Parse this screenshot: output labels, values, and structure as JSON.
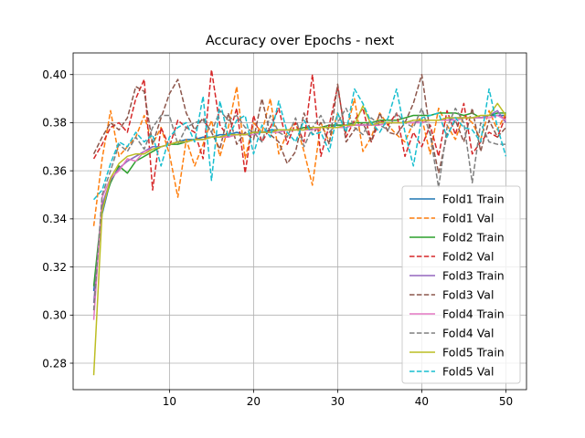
{
  "chart_data": {
    "type": "line",
    "title": "Accuracy over Epochs - next",
    "xlabel": "",
    "ylabel": "",
    "xlim": [
      -1.45,
      52.45
    ],
    "ylim": [
      0.269,
      0.409
    ],
    "x_ticks": [
      10,
      20,
      30,
      40,
      50
    ],
    "y_ticks": [
      0.28,
      0.3,
      0.32,
      0.34,
      0.36,
      0.38,
      0.4
    ],
    "y_tick_labels": [
      "0.28",
      "0.30",
      "0.32",
      "0.34",
      "0.36",
      "0.38",
      "0.40"
    ],
    "grid": true,
    "legend_position": "lower right",
    "x": [
      1,
      2,
      3,
      4,
      5,
      6,
      7,
      8,
      9,
      10,
      11,
      12,
      13,
      14,
      15,
      16,
      17,
      18,
      19,
      20,
      21,
      22,
      23,
      24,
      25,
      26,
      27,
      28,
      29,
      30,
      31,
      32,
      33,
      34,
      35,
      36,
      37,
      38,
      39,
      40,
      41,
      42,
      43,
      44,
      45,
      46,
      47,
      48,
      49,
      50
    ],
    "series": [
      {
        "name": "Fold1 Train",
        "color": "#1f77b4",
        "dash": "solid",
        "values": [
          0.31,
          0.342,
          0.356,
          0.361,
          0.364,
          0.366,
          0.368,
          0.37,
          0.37,
          0.371,
          0.372,
          0.373,
          0.373,
          0.374,
          0.374,
          0.375,
          0.375,
          0.376,
          0.375,
          0.376,
          0.376,
          0.377,
          0.377,
          0.377,
          0.377,
          0.378,
          0.378,
          0.378,
          0.378,
          0.379,
          0.379,
          0.379,
          0.379,
          0.379,
          0.38,
          0.38,
          0.38,
          0.38,
          0.381,
          0.381,
          0.381,
          0.381,
          0.382,
          0.382,
          0.382,
          0.382,
          0.382,
          0.383,
          0.383,
          0.383
        ]
      },
      {
        "name": "Fold1 Val",
        "color": "#ff7f0e",
        "dash": "dashed",
        "values": [
          0.337,
          0.365,
          0.385,
          0.366,
          0.37,
          0.374,
          0.383,
          0.371,
          0.378,
          0.367,
          0.349,
          0.373,
          0.362,
          0.371,
          0.381,
          0.366,
          0.378,
          0.395,
          0.365,
          0.38,
          0.376,
          0.39,
          0.367,
          0.376,
          0.38,
          0.368,
          0.354,
          0.38,
          0.372,
          0.384,
          0.376,
          0.39,
          0.368,
          0.374,
          0.384,
          0.379,
          0.375,
          0.372,
          0.38,
          0.382,
          0.367,
          0.386,
          0.379,
          0.373,
          0.383,
          0.38,
          0.373,
          0.385,
          0.377,
          0.384
        ]
      },
      {
        "name": "Fold2 Train",
        "color": "#2ca02c",
        "dash": "solid",
        "values": [
          0.312,
          0.345,
          0.355,
          0.362,
          0.359,
          0.364,
          0.366,
          0.368,
          0.37,
          0.371,
          0.371,
          0.372,
          0.373,
          0.373,
          0.374,
          0.374,
          0.375,
          0.375,
          0.375,
          0.376,
          0.376,
          0.376,
          0.377,
          0.377,
          0.377,
          0.378,
          0.378,
          0.378,
          0.379,
          0.379,
          0.379,
          0.38,
          0.38,
          0.38,
          0.381,
          0.381,
          0.381,
          0.382,
          0.383,
          0.383,
          0.383,
          0.384,
          0.384,
          0.384,
          0.383,
          0.384,
          0.382,
          0.383,
          0.384,
          0.384
        ]
      },
      {
        "name": "Fold2 Val",
        "color": "#d62728",
        "dash": "dashed",
        "values": [
          0.365,
          0.371,
          0.378,
          0.38,
          0.376,
          0.39,
          0.398,
          0.352,
          0.378,
          0.37,
          0.381,
          0.378,
          0.376,
          0.365,
          0.402,
          0.379,
          0.374,
          0.386,
          0.359,
          0.383,
          0.372,
          0.378,
          0.386,
          0.371,
          0.38,
          0.372,
          0.4,
          0.366,
          0.379,
          0.395,
          0.374,
          0.381,
          0.386,
          0.372,
          0.381,
          0.379,
          0.384,
          0.366,
          0.376,
          0.37,
          0.379,
          0.366,
          0.385,
          0.375,
          0.388,
          0.367,
          0.372,
          0.376,
          0.374,
          0.383
        ]
      },
      {
        "name": "Fold3 Train",
        "color": "#9467bd",
        "dash": "solid",
        "values": [
          0.305,
          0.346,
          0.356,
          0.361,
          0.364,
          0.366,
          0.368,
          0.37,
          0.37,
          0.371,
          0.372,
          0.372,
          0.373,
          0.373,
          0.374,
          0.374,
          0.375,
          0.375,
          0.375,
          0.376,
          0.376,
          0.376,
          0.377,
          0.377,
          0.377,
          0.377,
          0.378,
          0.378,
          0.378,
          0.378,
          0.379,
          0.379,
          0.379,
          0.379,
          0.38,
          0.38,
          0.38,
          0.38,
          0.38,
          0.381,
          0.381,
          0.381,
          0.381,
          0.382,
          0.382,
          0.382,
          0.382,
          0.383,
          0.385,
          0.38
        ]
      },
      {
        "name": "Fold3 Val",
        "color": "#8c564b",
        "dash": "dashed",
        "values": [
          0.367,
          0.374,
          0.38,
          0.377,
          0.382,
          0.395,
          0.393,
          0.371,
          0.382,
          0.392,
          0.398,
          0.384,
          0.377,
          0.382,
          0.376,
          0.369,
          0.384,
          0.371,
          0.376,
          0.373,
          0.39,
          0.375,
          0.372,
          0.363,
          0.368,
          0.384,
          0.375,
          0.38,
          0.371,
          0.396,
          0.372,
          0.377,
          0.38,
          0.372,
          0.384,
          0.376,
          0.375,
          0.38,
          0.388,
          0.4,
          0.376,
          0.359,
          0.375,
          0.381,
          0.372,
          0.386,
          0.368,
          0.381,
          0.374,
          0.378
        ]
      },
      {
        "name": "Fold4 Train",
        "color": "#e377c2",
        "dash": "solid",
        "values": [
          0.298,
          0.349,
          0.357,
          0.36,
          0.365,
          0.364,
          0.368,
          0.369,
          0.37,
          0.371,
          0.372,
          0.372,
          0.373,
          0.373,
          0.374,
          0.374,
          0.374,
          0.375,
          0.375,
          0.375,
          0.376,
          0.376,
          0.376,
          0.377,
          0.377,
          0.377,
          0.377,
          0.378,
          0.378,
          0.378,
          0.378,
          0.379,
          0.379,
          0.379,
          0.379,
          0.38,
          0.38,
          0.38,
          0.38,
          0.38,
          0.381,
          0.381,
          0.381,
          0.381,
          0.382,
          0.382,
          0.382,
          0.382,
          0.383,
          0.381
        ]
      },
      {
        "name": "Fold4 Val",
        "color": "#7f7f7f",
        "dash": "dashed",
        "values": [
          0.302,
          0.35,
          0.36,
          0.371,
          0.368,
          0.374,
          0.369,
          0.378,
          0.383,
          0.383,
          0.371,
          0.378,
          0.38,
          0.381,
          0.376,
          0.385,
          0.381,
          0.383,
          0.378,
          0.376,
          0.372,
          0.383,
          0.376,
          0.374,
          0.382,
          0.37,
          0.378,
          0.383,
          0.376,
          0.38,
          0.386,
          0.378,
          0.375,
          0.382,
          0.379,
          0.377,
          0.384,
          0.38,
          0.378,
          0.386,
          0.375,
          0.353,
          0.378,
          0.386,
          0.38,
          0.355,
          0.38,
          0.372,
          0.371,
          0.371
        ]
      },
      {
        "name": "Fold5 Train",
        "color": "#bcbd22",
        "dash": "solid",
        "values": [
          0.275,
          0.343,
          0.357,
          0.363,
          0.366,
          0.367,
          0.367,
          0.369,
          0.37,
          0.371,
          0.372,
          0.372,
          0.373,
          0.373,
          0.374,
          0.374,
          0.375,
          0.375,
          0.375,
          0.376,
          0.376,
          0.376,
          0.377,
          0.377,
          0.377,
          0.377,
          0.378,
          0.378,
          0.378,
          0.378,
          0.379,
          0.379,
          0.387,
          0.379,
          0.38,
          0.38,
          0.38,
          0.38,
          0.381,
          0.381,
          0.381,
          0.381,
          0.382,
          0.382,
          0.382,
          0.382,
          0.383,
          0.383,
          0.388,
          0.383
        ]
      },
      {
        "name": "Fold5 Val",
        "color": "#17becf",
        "dash": "dashed",
        "values": [
          0.348,
          0.352,
          0.363,
          0.372,
          0.37,
          0.376,
          0.372,
          0.375,
          0.362,
          0.374,
          0.378,
          0.38,
          0.372,
          0.391,
          0.356,
          0.389,
          0.374,
          0.381,
          0.383,
          0.367,
          0.379,
          0.374,
          0.389,
          0.376,
          0.372,
          0.381,
          0.375,
          0.376,
          0.368,
          0.384,
          0.376,
          0.394,
          0.388,
          0.38,
          0.376,
          0.382,
          0.394,
          0.376,
          0.362,
          0.382,
          0.383,
          0.384,
          0.374,
          0.382,
          0.378,
          0.377,
          0.372,
          0.394,
          0.378,
          0.366
        ]
      }
    ]
  }
}
